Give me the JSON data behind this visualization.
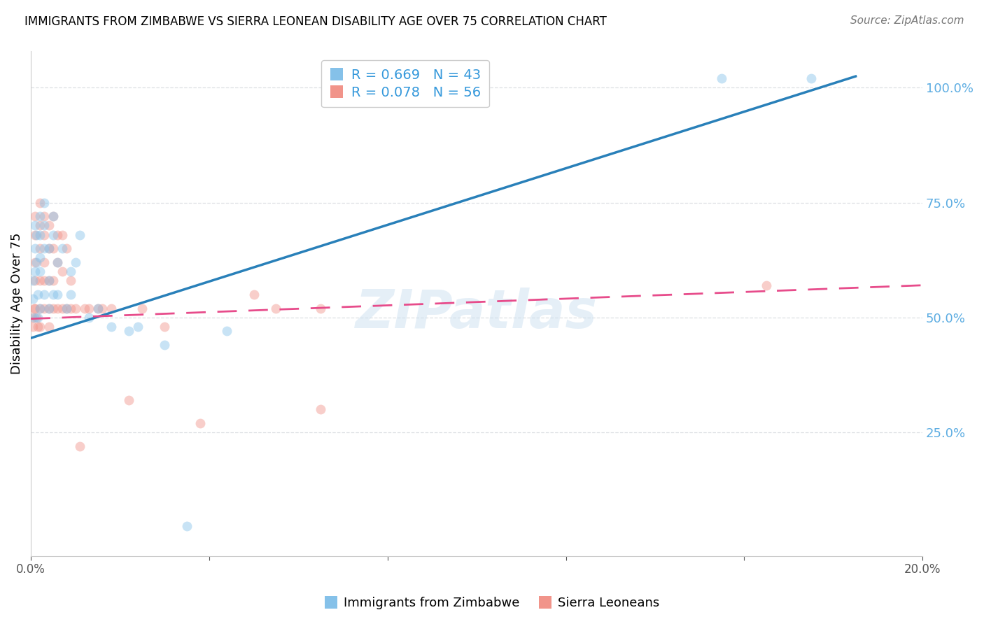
{
  "title": "IMMIGRANTS FROM ZIMBABWE VS SIERRA LEONEAN DISABILITY AGE OVER 75 CORRELATION CHART",
  "source": "Source: ZipAtlas.com",
  "xlabel": "",
  "ylabel": "Disability Age Over 75",
  "legend1_label": "Immigrants from Zimbabwe",
  "legend2_label": "Sierra Leoneans",
  "r1": 0.669,
  "n1": 43,
  "r2": 0.078,
  "n2": 56,
  "blue_color": "#85c1e9",
  "pink_color": "#f1948a",
  "blue_line_color": "#2980b9",
  "pink_line_color": "#e74c8b",
  "right_axis_color": "#5dade2",
  "watermark": "ZIPatlas",
  "xlim": [
    0.0,
    0.2
  ],
  "ylim": [
    -0.02,
    1.08
  ],
  "blue_x": [
    0.0005,
    0.0005,
    0.0007,
    0.001,
    0.001,
    0.001,
    0.0012,
    0.0012,
    0.0015,
    0.0015,
    0.002,
    0.002,
    0.002,
    0.002,
    0.002,
    0.003,
    0.003,
    0.003,
    0.003,
    0.004,
    0.004,
    0.004,
    0.005,
    0.005,
    0.005,
    0.006,
    0.006,
    0.007,
    0.008,
    0.009,
    0.009,
    0.01,
    0.011,
    0.013,
    0.015,
    0.018,
    0.022,
    0.024,
    0.03,
    0.035,
    0.044,
    0.155,
    0.175
  ],
  "blue_y": [
    0.58,
    0.54,
    0.5,
    0.7,
    0.65,
    0.6,
    0.68,
    0.62,
    0.55,
    0.5,
    0.72,
    0.68,
    0.63,
    0.6,
    0.52,
    0.75,
    0.7,
    0.65,
    0.55,
    0.65,
    0.58,
    0.52,
    0.72,
    0.68,
    0.55,
    0.62,
    0.55,
    0.65,
    0.52,
    0.6,
    0.55,
    0.62,
    0.68,
    0.5,
    0.52,
    0.48,
    0.47,
    0.48,
    0.44,
    0.045,
    0.47,
    1.02,
    1.02
  ],
  "pink_x": [
    0.0003,
    0.0005,
    0.0007,
    0.001,
    0.001,
    0.001,
    0.001,
    0.001,
    0.0012,
    0.0015,
    0.002,
    0.002,
    0.002,
    0.002,
    0.002,
    0.002,
    0.003,
    0.003,
    0.003,
    0.003,
    0.003,
    0.004,
    0.004,
    0.004,
    0.004,
    0.004,
    0.005,
    0.005,
    0.005,
    0.005,
    0.006,
    0.006,
    0.006,
    0.007,
    0.007,
    0.007,
    0.008,
    0.008,
    0.009,
    0.009,
    0.01,
    0.011,
    0.012,
    0.013,
    0.015,
    0.016,
    0.018,
    0.022,
    0.025,
    0.03,
    0.038,
    0.05,
    0.055,
    0.065,
    0.065,
    0.165
  ],
  "pink_y": [
    0.5,
    0.48,
    0.52,
    0.72,
    0.68,
    0.62,
    0.58,
    0.52,
    0.5,
    0.48,
    0.75,
    0.7,
    0.65,
    0.58,
    0.52,
    0.48,
    0.72,
    0.68,
    0.62,
    0.58,
    0.52,
    0.7,
    0.65,
    0.58,
    0.52,
    0.48,
    0.72,
    0.65,
    0.58,
    0.52,
    0.68,
    0.62,
    0.52,
    0.68,
    0.6,
    0.52,
    0.65,
    0.52,
    0.58,
    0.52,
    0.52,
    0.22,
    0.52,
    0.52,
    0.52,
    0.52,
    0.52,
    0.32,
    0.52,
    0.48,
    0.27,
    0.55,
    0.52,
    0.52,
    0.3,
    0.57
  ],
  "dot_size": 100,
  "dot_alpha": 0.45,
  "grid_color": "#d5d8dc",
  "grid_linestyle": "--",
  "grid_alpha": 0.8
}
